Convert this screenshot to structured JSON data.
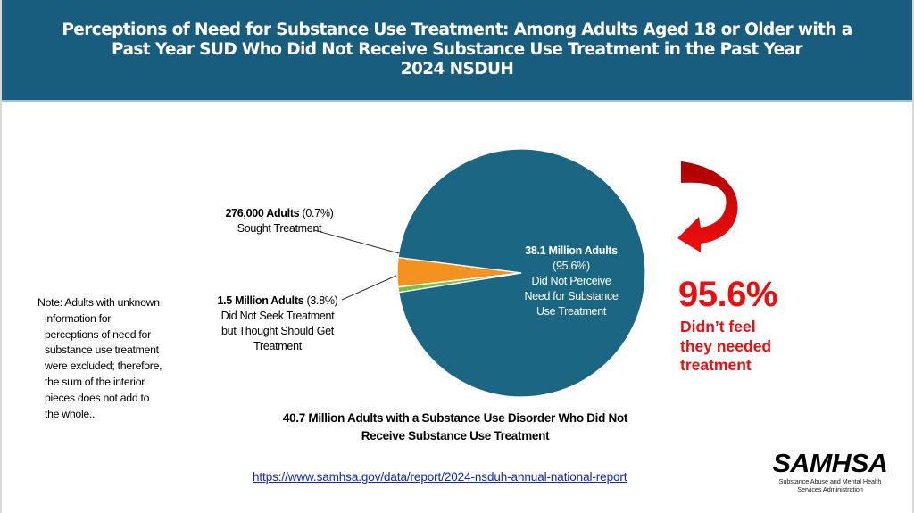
{
  "header": {
    "title_lines": [
      "Perceptions of Need for Substance Use Treatment: Among Adults Aged 18 or Older with a",
      "Past Year SUD Who Did Not Receive Substance Use Treatment in the Past Year",
      "2024 NSDUH"
    ]
  },
  "labels": {
    "sought": {
      "count": "276,000 Adults",
      "pct": " (0.7%)",
      "desc": "Sought Treatment"
    },
    "noseek": {
      "count": "1.5 Million Adults",
      "pct": " (3.8%)",
      "desc_lines": [
        "Did Not Seek Treatment",
        "but Thought Should Get",
        "Treatment"
      ]
    },
    "main": {
      "count": "38.1 Million Adults",
      "pct": "(95.6%)",
      "desc_lines": [
        "Did Not Perceive",
        "Need for Substance",
        "Use Treatment"
      ]
    }
  },
  "note": {
    "first": "Note: Adults with unknown",
    "rest_lines": [
      "information for",
      "perceptions of need for",
      "substance use treatment",
      "were excluded; therefore,",
      "the sum of the interior",
      "pieces does not add to",
      "the whole.."
    ]
  },
  "caption": {
    "lines": [
      "40.7 Million Adults with a Substance Use Disorder Who Did Not",
      "Receive Substance Use Treatment"
    ]
  },
  "link": {
    "text": "https://www.samhsa.gov/data/report/2024-nsduh-annual-national-report"
  },
  "callout": {
    "pct": "95.6%",
    "text_lines": [
      "Didn’t feel",
      "they needed",
      "treatment"
    ],
    "color": "#ee0d0d"
  },
  "logo": {
    "mark": "SAMHSA",
    "sub_lines": [
      "Substance Abuse and Mental Health",
      "Services Administration"
    ]
  },
  "colors": {
    "header_bg": "#185d7d",
    "pie_main": "#1b6783",
    "pie_noseek": "#f3921f",
    "pie_sought": "#7cc043"
  },
  "chart_data": {
    "type": "pie",
    "title": "Perceptions of Need for Substance Use Treatment: Among Adults Aged 18 or Older with a Past Year SUD Who Did Not Receive Substance Use Treatment in the Past Year, 2024 NSDUH",
    "total_label": "40.7 Million Adults with a Substance Use Disorder Who Did Not Receive Substance Use Treatment",
    "categories": [
      "Did Not Perceive Need for Substance Use Treatment",
      "Did Not Seek Treatment but Thought Should Get Treatment",
      "Sought Treatment"
    ],
    "values": [
      95.6,
      3.8,
      0.7
    ],
    "counts": [
      "38.1 Million Adults",
      "1.5 Million Adults",
      "276,000 Adults"
    ],
    "colors": [
      "#1b6783",
      "#f3921f",
      "#7cc043"
    ],
    "unit": "percent",
    "annotations": [
      "95.6% Didn’t feel they needed treatment",
      "Note: Adults with unknown information for perceptions of need for substance use treatment were excluded; therefore, the sum of the interior pieces does not add to the whole.."
    ]
  }
}
